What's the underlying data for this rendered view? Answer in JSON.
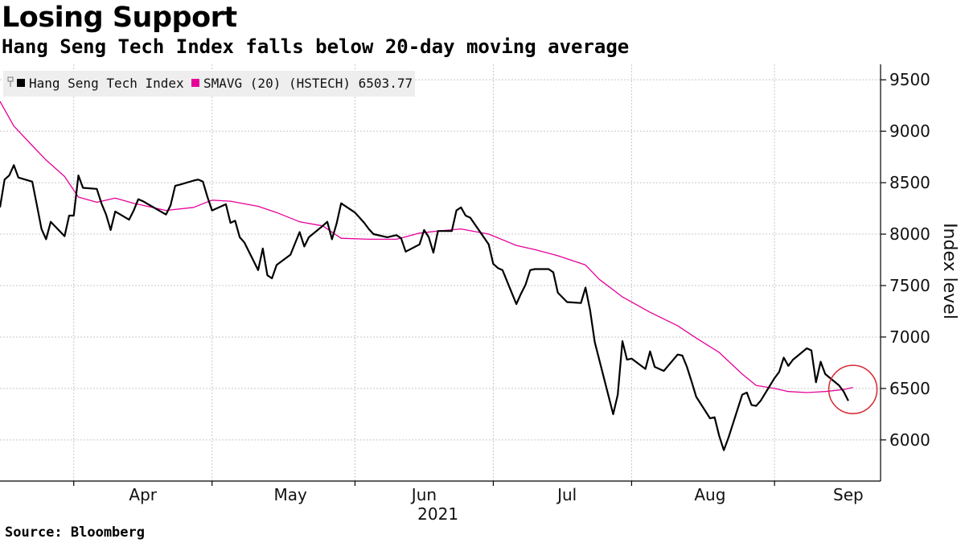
{
  "header": {
    "title": "Losing Support",
    "subtitle": "Hang Seng Tech Index falls below 20-day moving average"
  },
  "footer": {
    "source": "Source: Bloomberg"
  },
  "colors": {
    "index": "#000000",
    "sma": "#e6009a",
    "highlight": "#d62831",
    "grid": "#c8c8c8",
    "legend_bg": "#eeeeee"
  },
  "chart_data": {
    "type": "line",
    "title": "Losing Support",
    "subtitle": "Hang Seng Tech Index falls below 20-day moving average",
    "ylabel": "Index level",
    "xlabel": "",
    "ylim": [
      5600,
      9650
    ],
    "yticks": [
      6000,
      6500,
      7000,
      7500,
      8000,
      8500,
      9000,
      9500
    ],
    "xlim": [
      "2021-03-01",
      "2021-09-08"
    ],
    "xticks": [
      {
        "label": "Apr",
        "date": "2021-04-01"
      },
      {
        "label": "May",
        "date": "2021-05-03"
      },
      {
        "label": "Jun",
        "date": "2021-06-01"
      },
      {
        "label": "Jul",
        "date": "2021-07-02"
      },
      {
        "label": "Aug",
        "date": "2021-08-02"
      },
      {
        "label": "Sep",
        "date": "2021-09-01"
      }
    ],
    "xgrid": [
      "2021-03-17",
      "2021-04-16",
      "2021-05-17",
      "2021-06-16",
      "2021-07-16",
      "2021-08-16"
    ],
    "year_label": "2021",
    "grid": true,
    "legend_position": "top-left",
    "highlight": {
      "date": "2021-09-02",
      "value": 6490
    },
    "series": [
      {
        "name": "Hang Seng Tech Index",
        "color": "#000000",
        "points": [
          [
            "2021-03-01",
            8260
          ],
          [
            "2021-03-02",
            8530
          ],
          [
            "2021-03-03",
            8570
          ],
          [
            "2021-03-04",
            8670
          ],
          [
            "2021-03-05",
            8550
          ],
          [
            "2021-03-08",
            8510
          ],
          [
            "2021-03-09",
            8280
          ],
          [
            "2021-03-10",
            8050
          ],
          [
            "2021-03-11",
            7950
          ],
          [
            "2021-03-12",
            8120
          ],
          [
            "2021-03-15",
            7980
          ],
          [
            "2021-03-16",
            8180
          ],
          [
            "2021-03-17",
            8180
          ],
          [
            "2021-03-18",
            8570
          ],
          [
            "2021-03-19",
            8450
          ],
          [
            "2021-03-22",
            8440
          ],
          [
            "2021-03-23",
            8300
          ],
          [
            "2021-03-24",
            8190
          ],
          [
            "2021-03-25",
            8040
          ],
          [
            "2021-03-26",
            8220
          ],
          [
            "2021-03-29",
            8140
          ],
          [
            "2021-03-30",
            8230
          ],
          [
            "2021-03-31",
            8340
          ],
          [
            "2021-04-01",
            8320
          ],
          [
            "2021-04-06",
            8190
          ],
          [
            "2021-04-07",
            8280
          ],
          [
            "2021-04-08",
            8470
          ],
          [
            "2021-04-09",
            8480
          ],
          [
            "2021-04-12",
            8520
          ],
          [
            "2021-04-13",
            8530
          ],
          [
            "2021-04-14",
            8510
          ],
          [
            "2021-04-15",
            8360
          ],
          [
            "2021-04-16",
            8230
          ],
          [
            "2021-04-19",
            8290
          ],
          [
            "2021-04-20",
            8110
          ],
          [
            "2021-04-21",
            8130
          ],
          [
            "2021-04-22",
            7970
          ],
          [
            "2021-04-23",
            7920
          ],
          [
            "2021-04-26",
            7650
          ],
          [
            "2021-04-27",
            7860
          ],
          [
            "2021-04-28",
            7600
          ],
          [
            "2021-04-29",
            7570
          ],
          [
            "2021-04-30",
            7700
          ],
          [
            "2021-05-03",
            7800
          ],
          [
            "2021-05-04",
            7910
          ],
          [
            "2021-05-05",
            8020
          ],
          [
            "2021-05-06",
            7880
          ],
          [
            "2021-05-07",
            7970
          ],
          [
            "2021-05-10",
            8080
          ],
          [
            "2021-05-11",
            8120
          ],
          [
            "2021-05-12",
            7950
          ],
          [
            "2021-05-13",
            8100
          ],
          [
            "2021-05-14",
            8300
          ],
          [
            "2021-05-17",
            8210
          ],
          [
            "2021-05-18",
            8160
          ],
          [
            "2021-05-19",
            8110
          ],
          [
            "2021-05-20",
            8050
          ],
          [
            "2021-05-21",
            8000
          ],
          [
            "2021-05-24",
            7970
          ],
          [
            "2021-05-25",
            7980
          ],
          [
            "2021-05-26",
            7990
          ],
          [
            "2021-05-27",
            7960
          ],
          [
            "2021-05-28",
            7830
          ],
          [
            "2021-05-31",
            7900
          ],
          [
            "2021-06-01",
            8040
          ],
          [
            "2021-06-02",
            7970
          ],
          [
            "2021-06-03",
            7820
          ],
          [
            "2021-06-04",
            8030
          ],
          [
            "2021-06-07",
            8030
          ],
          [
            "2021-06-08",
            8230
          ],
          [
            "2021-06-09",
            8260
          ],
          [
            "2021-06-10",
            8180
          ],
          [
            "2021-06-11",
            8160
          ],
          [
            "2021-06-15",
            7900
          ],
          [
            "2021-06-16",
            7710
          ],
          [
            "2021-06-17",
            7670
          ],
          [
            "2021-06-18",
            7650
          ],
          [
            "2021-06-21",
            7320
          ],
          [
            "2021-06-22",
            7420
          ],
          [
            "2021-06-23",
            7510
          ],
          [
            "2021-06-24",
            7650
          ],
          [
            "2021-06-25",
            7660
          ],
          [
            "2021-06-28",
            7660
          ],
          [
            "2021-06-29",
            7630
          ],
          [
            "2021-06-30",
            7430
          ],
          [
            "2021-07-02",
            7340
          ],
          [
            "2021-07-05",
            7330
          ],
          [
            "2021-07-06",
            7480
          ],
          [
            "2021-07-07",
            7260
          ],
          [
            "2021-07-08",
            6950
          ],
          [
            "2021-07-12",
            6250
          ],
          [
            "2021-07-13",
            6440
          ],
          [
            "2021-07-14",
            6960
          ],
          [
            "2021-07-15",
            6780
          ],
          [
            "2021-07-16",
            6790
          ],
          [
            "2021-07-19",
            6690
          ],
          [
            "2021-07-20",
            6860
          ],
          [
            "2021-07-21",
            6710
          ],
          [
            "2021-07-22",
            6690
          ],
          [
            "2021-07-23",
            6670
          ],
          [
            "2021-07-26",
            6830
          ],
          [
            "2021-07-27",
            6820
          ],
          [
            "2021-07-28",
            6710
          ],
          [
            "2021-07-29",
            6570
          ],
          [
            "2021-07-30",
            6420
          ],
          [
            "2021-08-02",
            6210
          ],
          [
            "2021-08-03",
            6220
          ],
          [
            "2021-08-04",
            6040
          ],
          [
            "2021-08-05",
            5900
          ],
          [
            "2021-08-06",
            6020
          ],
          [
            "2021-08-09",
            6440
          ],
          [
            "2021-08-10",
            6460
          ],
          [
            "2021-08-11",
            6340
          ],
          [
            "2021-08-12",
            6330
          ],
          [
            "2021-08-13",
            6380
          ],
          [
            "2021-08-16",
            6600
          ],
          [
            "2021-08-17",
            6660
          ],
          [
            "2021-08-18",
            6800
          ],
          [
            "2021-08-19",
            6720
          ],
          [
            "2021-08-20",
            6780
          ],
          [
            "2021-08-23",
            6890
          ],
          [
            "2021-08-24",
            6870
          ],
          [
            "2021-08-25",
            6560
          ],
          [
            "2021-08-26",
            6760
          ],
          [
            "2021-08-27",
            6640
          ],
          [
            "2021-08-30",
            6530
          ],
          [
            "2021-08-31",
            6470
          ],
          [
            "2021-09-01",
            6380
          ]
        ]
      },
      {
        "name": "SMAVG (20) (HSTECH) 6503.77",
        "color": "#e6009a",
        "points": [
          [
            "2021-03-01",
            9290
          ],
          [
            "2021-03-04",
            9050
          ],
          [
            "2021-03-08",
            8860
          ],
          [
            "2021-03-11",
            8720
          ],
          [
            "2021-03-15",
            8560
          ],
          [
            "2021-03-18",
            8360
          ],
          [
            "2021-03-22",
            8310
          ],
          [
            "2021-03-26",
            8350
          ],
          [
            "2021-03-30",
            8300
          ],
          [
            "2021-04-06",
            8230
          ],
          [
            "2021-04-12",
            8260
          ],
          [
            "2021-04-16",
            8330
          ],
          [
            "2021-04-20",
            8320
          ],
          [
            "2021-04-26",
            8270
          ],
          [
            "2021-04-30",
            8210
          ],
          [
            "2021-05-05",
            8120
          ],
          [
            "2021-05-10",
            8080
          ],
          [
            "2021-05-14",
            7960
          ],
          [
            "2021-05-20",
            7950
          ],
          [
            "2021-05-26",
            7950
          ],
          [
            "2021-05-31",
            8010
          ],
          [
            "2021-06-04",
            8030
          ],
          [
            "2021-06-09",
            8050
          ],
          [
            "2021-06-15",
            8000
          ],
          [
            "2021-06-21",
            7890
          ],
          [
            "2021-06-25",
            7850
          ],
          [
            "2021-06-30",
            7790
          ],
          [
            "2021-07-06",
            7700
          ],
          [
            "2021-07-09",
            7560
          ],
          [
            "2021-07-14",
            7390
          ],
          [
            "2021-07-20",
            7240
          ],
          [
            "2021-07-26",
            7110
          ],
          [
            "2021-07-30",
            6990
          ],
          [
            "2021-08-04",
            6850
          ],
          [
            "2021-08-09",
            6640
          ],
          [
            "2021-08-12",
            6530
          ],
          [
            "2021-08-16",
            6500
          ],
          [
            "2021-08-19",
            6470
          ],
          [
            "2021-08-23",
            6460
          ],
          [
            "2021-08-27",
            6470
          ],
          [
            "2021-08-31",
            6490
          ],
          [
            "2021-09-02",
            6510
          ]
        ]
      }
    ]
  }
}
